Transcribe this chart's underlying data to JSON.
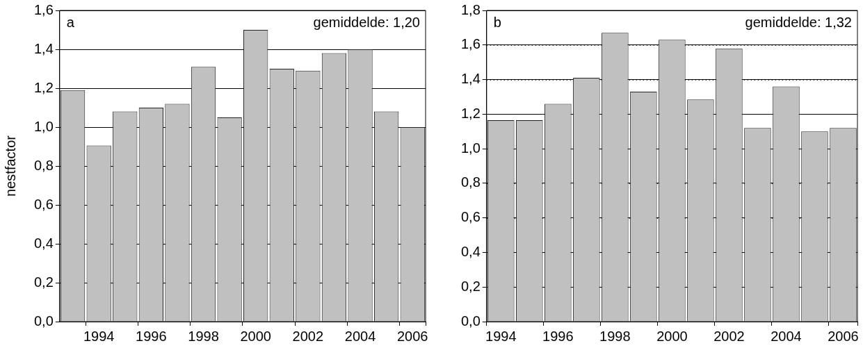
{
  "chart_data": [
    {
      "type": "bar",
      "ylabel": "nestfactor",
      "annotations": [
        "a",
        "gemiddelde: 1,20"
      ],
      "categories": [
        null,
        "1994",
        null,
        "1996",
        null,
        "1998",
        null,
        "2000",
        null,
        "2002",
        null,
        "2004",
        null,
        "2006"
      ],
      "values": [
        1.19,
        0.905,
        1.08,
        1.1,
        1.12,
        1.31,
        1.05,
        1.5,
        1.3,
        1.29,
        1.38,
        1.4,
        1.08,
        1.0
      ],
      "color": "#c0c0c0",
      "ylim": [
        0,
        1.6
      ],
      "yticks": [
        {
          "value": 0,
          "label": "0,0"
        },
        {
          "value": 0.2,
          "label": "0,2"
        },
        {
          "value": 0.4,
          "label": "0,4"
        },
        {
          "value": 0.6,
          "label": "0,6"
        },
        {
          "value": 0.8,
          "label": "0,8"
        },
        {
          "value": 1.0,
          "label": "1,0"
        },
        {
          "value": 1.2,
          "label": "1,2"
        },
        {
          "value": 1.4,
          "label": "1,4"
        },
        {
          "value": 1.6,
          "label": "1,6"
        }
      ],
      "grid": "y",
      "legend": false
    },
    {
      "type": "bar",
      "annotations": [
        "b",
        "gemiddelde: 1,32"
      ],
      "categories": [
        "1994",
        null,
        "1996",
        null,
        "1998",
        null,
        "2000",
        null,
        "2002",
        null,
        "2004",
        null,
        "2006"
      ],
      "values": [
        1.165,
        1.165,
        1.26,
        1.41,
        1.67,
        1.33,
        1.63,
        1.285,
        1.58,
        1.12,
        1.36,
        1.1,
        1.12
      ],
      "color": "#c0c0c0",
      "ylim": [
        0,
        1.8
      ],
      "yticks": [
        {
          "value": 0,
          "label": "0,0"
        },
        {
          "value": 0.2,
          "label": "0,2"
        },
        {
          "value": 0.4,
          "label": "0,4"
        },
        {
          "value": 0.6,
          "label": "0,6"
        },
        {
          "value": 0.8,
          "label": "0,8"
        },
        {
          "value": 1.0,
          "label": "1,0"
        },
        {
          "value": 1.2,
          "label": "1,2"
        },
        {
          "value": 1.4,
          "label": "1,4"
        },
        {
          "value": 1.6,
          "label": "1,6"
        },
        {
          "value": 1.8,
          "label": "1,8"
        }
      ],
      "grid": "y",
      "legend": false
    }
  ]
}
